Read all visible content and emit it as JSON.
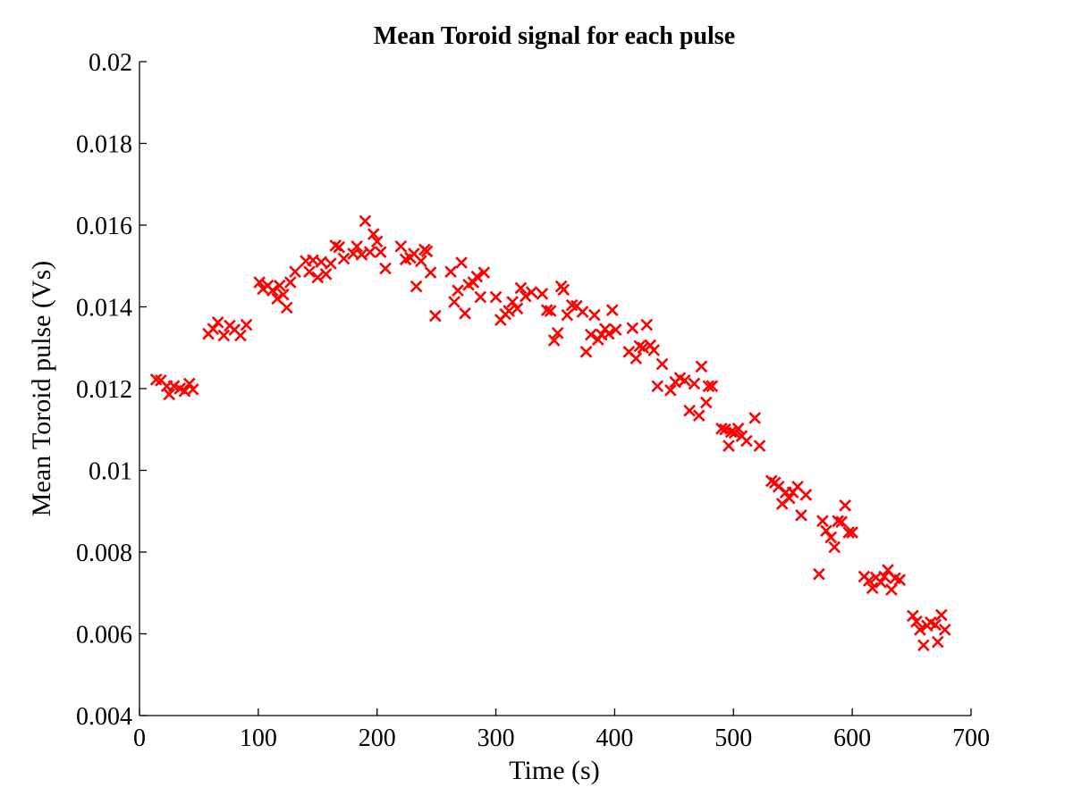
{
  "chart_data": {
    "type": "scatter",
    "title": "Mean Toroid signal for each pulse",
    "xlabel": "Time (s)",
    "ylabel": "Mean Toroid pulse (Vs)",
    "xlim": [
      0,
      700
    ],
    "ylim": [
      0.004,
      0.02
    ],
    "xticks": [
      0,
      100,
      200,
      300,
      400,
      500,
      600,
      700
    ],
    "yticks": [
      0.004,
      0.006,
      0.008,
      0.01,
      0.012,
      0.014,
      0.016,
      0.018,
      0.02
    ],
    "xtick_labels": [
      "0",
      "100",
      "200",
      "300",
      "400",
      "500",
      "600",
      "700"
    ],
    "ytick_labels": [
      "0.004",
      "0.006",
      "0.008",
      "0.01",
      "0.012",
      "0.014",
      "0.016",
      "0.018",
      "0.02"
    ],
    "grid": false,
    "legend": "none",
    "marker": "x",
    "marker_color": "#ff0000",
    "series": [
      {
        "points": [
          [
            14,
            0.01222
          ],
          [
            18,
            0.0122
          ],
          [
            23,
            0.01206
          ],
          [
            25,
            0.01186
          ],
          [
            29,
            0.01206
          ],
          [
            34,
            0.012
          ],
          [
            38,
            0.01194
          ],
          [
            42,
            0.01212
          ],
          [
            45,
            0.01198
          ],
          [
            58,
            0.01334
          ],
          [
            62,
            0.01346
          ],
          [
            66,
            0.01362
          ],
          [
            71,
            0.0133
          ],
          [
            76,
            0.01354
          ],
          [
            80,
            0.01344
          ],
          [
            85,
            0.0133
          ],
          [
            90,
            0.01356
          ],
          [
            101,
            0.0146
          ],
          [
            104,
            0.01444
          ],
          [
            108,
            0.01452
          ],
          [
            112,
            0.0144
          ],
          [
            116,
            0.0142
          ],
          [
            118,
            0.01452
          ],
          [
            121,
            0.0143
          ],
          [
            124,
            0.01398
          ],
          [
            127,
            0.0146
          ],
          [
            131,
            0.01486
          ],
          [
            140,
            0.01512
          ],
          [
            143,
            0.01486
          ],
          [
            146,
            0.01514
          ],
          [
            150,
            0.01472
          ],
          [
            153,
            0.0151
          ],
          [
            157,
            0.0148
          ],
          [
            161,
            0.01506
          ],
          [
            165,
            0.0155
          ],
          [
            168,
            0.01546
          ],
          [
            172,
            0.01518
          ],
          [
            180,
            0.0153
          ],
          [
            183,
            0.01548
          ],
          [
            187,
            0.01528
          ],
          [
            190,
            0.0161
          ],
          [
            194,
            0.01534
          ],
          [
            197,
            0.01578
          ],
          [
            200,
            0.0156
          ],
          [
            203,
            0.01534
          ],
          [
            207,
            0.01494
          ],
          [
            220,
            0.01548
          ],
          [
            224,
            0.01516
          ],
          [
            228,
            0.0152
          ],
          [
            231,
            0.0153
          ],
          [
            233,
            0.0145
          ],
          [
            237,
            0.01512
          ],
          [
            240,
            0.0154
          ],
          [
            242,
            0.01536
          ],
          [
            245,
            0.01484
          ],
          [
            249,
            0.01378
          ],
          [
            262,
            0.01486
          ],
          [
            265,
            0.01412
          ],
          [
            268,
            0.0144
          ],
          [
            271,
            0.01508
          ],
          [
            274,
            0.01384
          ],
          [
            277,
            0.01454
          ],
          [
            281,
            0.0146
          ],
          [
            284,
            0.01474
          ],
          [
            287,
            0.01424
          ],
          [
            290,
            0.01484
          ],
          [
            300,
            0.01424
          ],
          [
            304,
            0.01368
          ],
          [
            308,
            0.01382
          ],
          [
            311,
            0.0139
          ],
          [
            314,
            0.01412
          ],
          [
            318,
            0.01396
          ],
          [
            321,
            0.01446
          ],
          [
            325,
            0.01426
          ],
          [
            330,
            0.01436
          ],
          [
            339,
            0.01432
          ],
          [
            343,
            0.01392
          ],
          [
            346,
            0.0139
          ],
          [
            349,
            0.01318
          ],
          [
            352,
            0.01336
          ],
          [
            355,
            0.0145
          ],
          [
            357,
            0.01442
          ],
          [
            360,
            0.0138
          ],
          [
            364,
            0.01404
          ],
          [
            368,
            0.01402
          ],
          [
            373,
            0.01388
          ],
          [
            376,
            0.0129
          ],
          [
            380,
            0.01332
          ],
          [
            383,
            0.0138
          ],
          [
            386,
            0.0132
          ],
          [
            389,
            0.01332
          ],
          [
            392,
            0.01346
          ],
          [
            395,
            0.01334
          ],
          [
            398,
            0.01392
          ],
          [
            401,
            0.01344
          ],
          [
            412,
            0.0129
          ],
          [
            415,
            0.01348
          ],
          [
            418,
            0.01274
          ],
          [
            421,
            0.01304
          ],
          [
            424,
            0.013
          ],
          [
            427,
            0.01356
          ],
          [
            430,
            0.01306
          ],
          [
            433,
            0.01294
          ],
          [
            436,
            0.01206
          ],
          [
            440,
            0.0126
          ],
          [
            447,
            0.01196
          ],
          [
            451,
            0.01216
          ],
          [
            455,
            0.01226
          ],
          [
            459,
            0.0122
          ],
          [
            463,
            0.01146
          ],
          [
            467,
            0.01212
          ],
          [
            471,
            0.01134
          ],
          [
            473,
            0.01254
          ],
          [
            477,
            0.01166
          ],
          [
            479,
            0.01206
          ],
          [
            482,
            0.01206
          ],
          [
            490,
            0.01102
          ],
          [
            493,
            0.011
          ],
          [
            496,
            0.0106
          ],
          [
            498,
            0.01094
          ],
          [
            501,
            0.01092
          ],
          [
            504,
            0.01102
          ],
          [
            507,
            0.01084
          ],
          [
            511,
            0.01072
          ],
          [
            518,
            0.01128
          ],
          [
            522,
            0.0106
          ],
          [
            532,
            0.00974
          ],
          [
            535,
            0.0097
          ],
          [
            538,
            0.0096
          ],
          [
            541,
            0.00918
          ],
          [
            544,
            0.00946
          ],
          [
            547,
            0.00932
          ],
          [
            550,
            0.00946
          ],
          [
            554,
            0.0096
          ],
          [
            557,
            0.0089
          ],
          [
            561,
            0.0094
          ],
          [
            572,
            0.00746
          ],
          [
            575,
            0.00876
          ],
          [
            578,
            0.00852
          ],
          [
            582,
            0.00836
          ],
          [
            585,
            0.00812
          ],
          [
            588,
            0.00876
          ],
          [
            591,
            0.00874
          ],
          [
            594,
            0.00914
          ],
          [
            597,
            0.00848
          ],
          [
            600,
            0.00848
          ],
          [
            610,
            0.0074
          ],
          [
            614,
            0.0073
          ],
          [
            617,
            0.00712
          ],
          [
            620,
            0.00738
          ],
          [
            624,
            0.00726
          ],
          [
            627,
            0.0074
          ],
          [
            630,
            0.00756
          ],
          [
            633,
            0.00708
          ],
          [
            636,
            0.00736
          ],
          [
            640,
            0.00732
          ],
          [
            651,
            0.00644
          ],
          [
            654,
            0.0063
          ],
          [
            657,
            0.0061
          ],
          [
            660,
            0.00572
          ],
          [
            663,
            0.0062
          ],
          [
            666,
            0.00628
          ],
          [
            670,
            0.00622
          ],
          [
            672,
            0.0058
          ],
          [
            675,
            0.00646
          ],
          [
            678,
            0.0061
          ]
        ]
      }
    ]
  }
}
